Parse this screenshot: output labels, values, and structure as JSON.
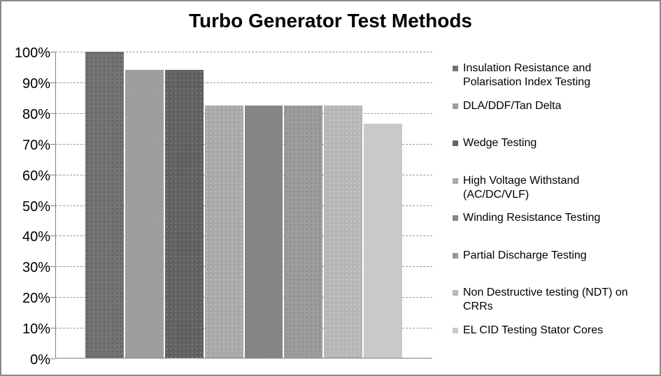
{
  "title": "Turbo Generator Test Methods",
  "chart_data": {
    "type": "bar",
    "title": "Turbo Generator Test Methods",
    "xlabel": "",
    "ylabel": "",
    "ylim": [
      0,
      100
    ],
    "ytick_step": 10,
    "ytick_labels": [
      "100%",
      "90%",
      "80%",
      "70%",
      "60%",
      "50%",
      "40%",
      "30%",
      "20%",
      "10%",
      "0%"
    ],
    "grid": true,
    "gridline_style": "dashed",
    "legend_position": "right",
    "categories": [
      "Insulation Resistance and Polarisation Index Testing",
      "DLA/DDF/Tan Delta",
      "Wedge Testing",
      "High Voltage Withstand (AC/DC/VLF)",
      "Winding Resistance Testing",
      "Partial Discharge Testing",
      "Non Destructive testing (NDT) on CRRs",
      "EL CID Testing Stator Cores"
    ],
    "values": [
      100,
      94.1,
      94.1,
      82.4,
      82.4,
      82.4,
      82.4,
      76.5
    ],
    "legend_labels": [
      "Insulation Resistance and\nPolarisation Index Testing",
      "DLA/DDF/Tan Delta",
      "Wedge Testing",
      "High Voltage Withstand\n(AC/DC/VLF)",
      "Winding Resistance Testing",
      "Partial Discharge Testing",
      "Non Destructive testing (NDT) on\nCRRs",
      "EL CID Testing Stator Cores"
    ],
    "series_styles": [
      {
        "base": "#737373",
        "dot": "#5c5c5c",
        "pattern": "dots"
      },
      {
        "base": "#a3a3a3",
        "dot": "#969696",
        "pattern": "fine"
      },
      {
        "base": "#606060",
        "dot": "#7b7b7b",
        "pattern": "dots"
      },
      {
        "base": "#a8a8a8",
        "dot": "#c0c0c0",
        "pattern": "dots"
      },
      {
        "base": "#8a8a8a",
        "dot": "#7d7d7d",
        "pattern": "fine"
      },
      {
        "base": "#9c9c9c",
        "dot": "#858585",
        "pattern": "dots"
      },
      {
        "base": "#b6b6b6",
        "dot": "#cecece",
        "pattern": "dots"
      },
      {
        "base": "#c9c9c9",
        "dot": "#c9c9c9",
        "pattern": "solid"
      }
    ]
  },
  "colors": {
    "axis": "#808080",
    "gridline": "#989898",
    "frame_border": "#898989",
    "text": "#000000",
    "background": "#ffffff"
  }
}
